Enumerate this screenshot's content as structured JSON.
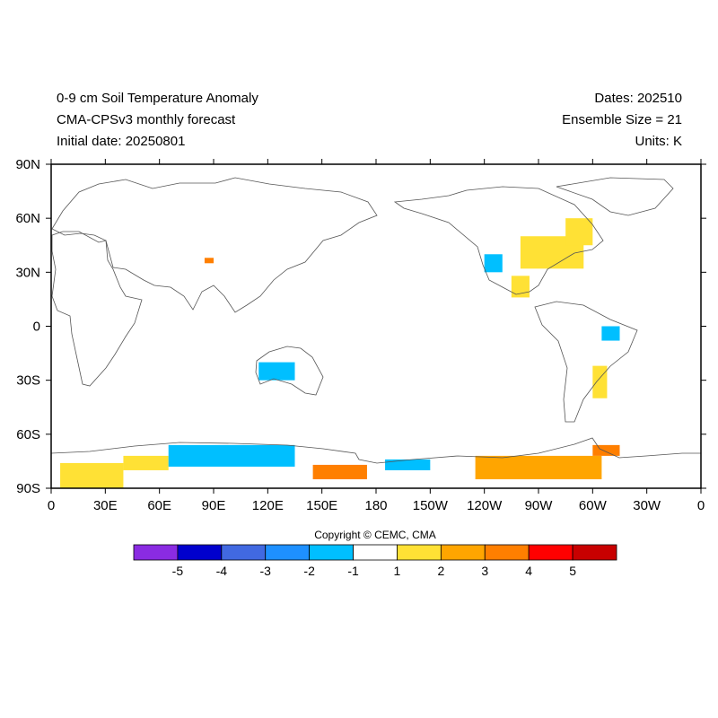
{
  "header": {
    "title_line1": "0-9 cm Soil Temperature Anomaly",
    "title_line2": "CMA-CPSv3 monthly forecast",
    "title_line3": "Initial date: 20250801",
    "dates": "Dates: 202510",
    "ensemble": "Ensemble Size = 21",
    "units": "Units: K"
  },
  "map": {
    "projection": "cylindrical equidistant, centered 180",
    "lat_ticks": [
      "90N",
      "60N",
      "30N",
      "0",
      "30S",
      "60S",
      "90S"
    ],
    "lon_ticks": [
      "0",
      "30E",
      "60E",
      "90E",
      "120E",
      "150E",
      "180",
      "150W",
      "120W",
      "90W",
      "60W",
      "30W",
      "0"
    ]
  },
  "copyright": "Copyright © CEMC, CMA",
  "colorbar": {
    "colors": [
      "#8a2be2",
      "#0000cd",
      "#4169e1",
      "#1e90ff",
      "#00bfff",
      "#ffffff",
      "#ffe135",
      "#ffa500",
      "#ff7f00",
      "#ff0000",
      "#c80000"
    ],
    "labels": [
      "-5",
      "-4",
      "-3",
      "-2",
      "-1",
      "1",
      "2",
      "3",
      "4",
      "5"
    ]
  },
  "chart_data": {
    "type": "heatmap",
    "title": "0-9 cm Soil Temperature Anomaly",
    "units": "K",
    "levels": [
      -5,
      -4,
      -3,
      -2,
      -1,
      1,
      2,
      3,
      4,
      5
    ],
    "regions": [
      {
        "lon": [
          5,
          40
        ],
        "lat": [
          -90,
          -76
        ],
        "value": 1.5
      },
      {
        "lon": [
          40,
          65
        ],
        "lat": [
          -80,
          -72
        ],
        "value": 1.5
      },
      {
        "lon": [
          65,
          135
        ],
        "lat": [
          -78,
          -66
        ],
        "value": -1.5
      },
      {
        "lon": [
          145,
          175
        ],
        "lat": [
          -85,
          -77
        ],
        "value": 3.5
      },
      {
        "lon": [
          -175,
          -150
        ],
        "lat": [
          -80,
          -74
        ],
        "value": -1.5
      },
      {
        "lon": [
          -125,
          -55
        ],
        "lat": [
          -85,
          -72
        ],
        "value": 2.5
      },
      {
        "lon": [
          -60,
          -45
        ],
        "lat": [
          -72,
          -66
        ],
        "value": 3.5
      },
      {
        "lon": [
          -100,
          -65
        ],
        "lat": [
          32,
          50
        ],
        "value": 1.5
      },
      {
        "lon": [
          -75,
          -60
        ],
        "lat": [
          45,
          60
        ],
        "value": 1.5
      },
      {
        "lon": [
          -120,
          -110
        ],
        "lat": [
          30,
          40
        ],
        "value": -1.5
      },
      {
        "lon": [
          -105,
          -95
        ],
        "lat": [
          16,
          28
        ],
        "value": 1.5
      },
      {
        "lon": [
          -60,
          -52
        ],
        "lat": [
          -40,
          -22
        ],
        "value": 1.5
      },
      {
        "lon": [
          -55,
          -45
        ],
        "lat": [
          -8,
          0
        ],
        "value": -1.5
      },
      {
        "lon": [
          115,
          135
        ],
        "lat": [
          -30,
          -20
        ],
        "value": -1.5
      },
      {
        "lon": [
          85,
          90
        ],
        "lat": [
          35,
          38
        ],
        "value": 3.5
      }
    ]
  }
}
